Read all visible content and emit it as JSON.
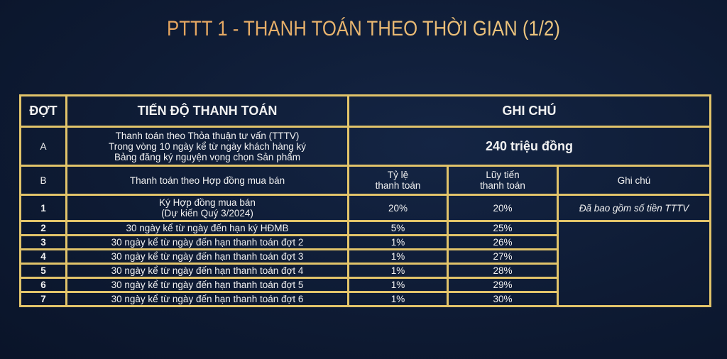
{
  "title": "PTTT 1 - THANH TOÁN THEO THỜI GIAN (1/2)",
  "colors": {
    "background": "#0e1b34",
    "border": "#e2c46a",
    "title": "#e8b670"
  },
  "table": {
    "headers": {
      "dot": "ĐỢT",
      "progress": "TIẾN ĐỘ THANH TOÁN",
      "note": "GHI CHÚ"
    },
    "row_a": {
      "dot": "A",
      "lines": [
        "Thanh toán theo Thỏa thuận tư vấn (TTTV)",
        "Trong vòng 10 ngày kể từ ngày khách hàng ký",
        "Bảng đăng ký nguyện vọng chọn Sản phẩm"
      ],
      "note": "240 triệu đồng"
    },
    "row_b": {
      "dot": "B",
      "progress": "Thanh toán theo Hợp đồng mua bán",
      "rate_header": [
        "Tỷ lệ",
        "thanh toán"
      ],
      "cumulative_header": [
        "Lũy tiến",
        "thanh toán"
      ],
      "note_header": "Ghi chú"
    },
    "row_1": {
      "dot": "1",
      "lines": [
        "Ký Hợp đồng mua bán",
        "(Dự kiến Quý 3/2024)"
      ],
      "rate": "20%",
      "cumulative": "20%",
      "note": "Đã bao gồm số tiền TTTV"
    },
    "rows": [
      {
        "dot": "2",
        "progress": "30 ngày kể từ ngày đến hạn ký HĐMB",
        "rate": "5%",
        "cumulative": "25%"
      },
      {
        "dot": "3",
        "progress": "30 ngày kể từ ngày đến hạn thanh toán đợt 2",
        "rate": "1%",
        "cumulative": "26%"
      },
      {
        "dot": "4",
        "progress": "30 ngày kể từ ngày đến hạn thanh toán đợt 3",
        "rate": "1%",
        "cumulative": "27%"
      },
      {
        "dot": "5",
        "progress": "30 ngày kể từ ngày đến hạn thanh toán đợt 4",
        "rate": "1%",
        "cumulative": "28%"
      },
      {
        "dot": "6",
        "progress": "30 ngày kể từ ngày đến hạn thanh toán đợt 5",
        "rate": "1%",
        "cumulative": "29%"
      },
      {
        "dot": "7",
        "progress": "30 ngày kể từ ngày đến hạn thanh toán đợt 6",
        "rate": "1%",
        "cumulative": "30%"
      }
    ]
  }
}
